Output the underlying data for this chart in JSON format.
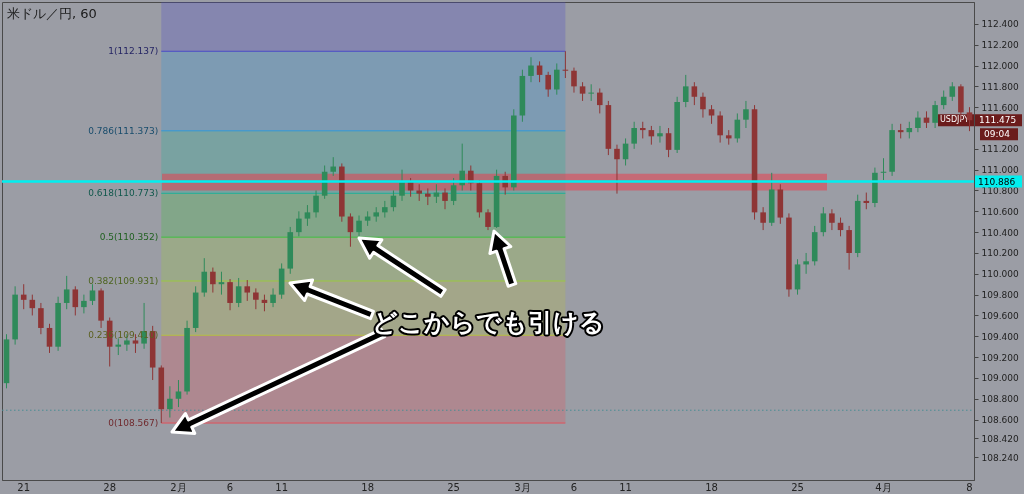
{
  "chart_data": {
    "type": "candlestick",
    "title": "米ドル／円, 60",
    "categories": [
      null,
      null,
      "21",
      null,
      null,
      null,
      null,
      null,
      null,
      null,
      null,
      null,
      "28",
      null,
      null,
      null,
      null,
      null,
      null,
      null,
      "2月",
      null,
      null,
      null,
      null,
      null,
      "6",
      null,
      null,
      null,
      null,
      null,
      "11",
      null,
      null,
      null,
      null,
      null,
      null,
      null,
      null,
      null,
      "18",
      null,
      null,
      null,
      null,
      null,
      null,
      null,
      null,
      null,
      "25",
      null,
      null,
      null,
      null,
      null,
      null,
      null,
      "3月",
      null,
      null,
      null,
      null,
      null,
      "6",
      null,
      null,
      null,
      null,
      null,
      "11",
      null,
      null,
      null,
      null,
      null,
      null,
      null,
      null,
      null,
      "18",
      null,
      null,
      null,
      null,
      null,
      null,
      null,
      null,
      null,
      "25",
      null,
      null,
      null,
      null,
      null,
      null,
      null,
      null,
      null,
      "4月",
      null,
      null,
      null,
      null,
      null,
      null,
      null,
      null,
      null,
      "8"
    ],
    "ohlc": [
      [
        108.95,
        109.42,
        108.9,
        109.37
      ],
      [
        109.37,
        109.88,
        109.32,
        109.8
      ],
      [
        109.8,
        109.9,
        109.66,
        109.75
      ],
      [
        109.75,
        109.8,
        109.6,
        109.67
      ],
      [
        109.67,
        109.72,
        109.42,
        109.48
      ],
      [
        109.48,
        109.52,
        109.24,
        109.3
      ],
      [
        109.3,
        109.78,
        109.26,
        109.72
      ],
      [
        109.72,
        109.98,
        109.66,
        109.85
      ],
      [
        109.85,
        109.88,
        109.6,
        109.68
      ],
      [
        109.68,
        109.8,
        109.62,
        109.74
      ],
      [
        109.74,
        109.9,
        109.7,
        109.84
      ],
      [
        109.84,
        109.86,
        109.48,
        109.55
      ],
      [
        109.55,
        109.58,
        109.11,
        109.3
      ],
      [
        109.3,
        109.38,
        109.22,
        109.32
      ],
      [
        109.32,
        109.42,
        109.26,
        109.36
      ],
      [
        109.36,
        109.42,
        109.24,
        109.33
      ],
      [
        109.33,
        109.72,
        109.28,
        109.45
      ],
      [
        109.45,
        109.5,
        108.98,
        109.1
      ],
      [
        109.1,
        109.12,
        108.567,
        108.7
      ],
      [
        108.7,
        108.92,
        108.62,
        108.8
      ],
      [
        108.8,
        108.98,
        108.72,
        108.87
      ],
      [
        108.87,
        109.55,
        108.84,
        109.48
      ],
      [
        109.48,
        109.88,
        109.44,
        109.82
      ],
      [
        109.82,
        110.15,
        109.78,
        110.02
      ],
      [
        110.02,
        110.06,
        109.82,
        109.9
      ],
      [
        109.9,
        110.02,
        109.8,
        109.92
      ],
      [
        109.92,
        109.95,
        109.65,
        109.72
      ],
      [
        109.72,
        109.96,
        109.68,
        109.88
      ],
      [
        109.88,
        109.94,
        109.74,
        109.82
      ],
      [
        109.82,
        109.86,
        109.66,
        109.75
      ],
      [
        109.75,
        109.8,
        109.64,
        109.72
      ],
      [
        109.72,
        109.86,
        109.68,
        109.8
      ],
      [
        109.8,
        110.1,
        109.76,
        110.05
      ],
      [
        110.05,
        110.45,
        110.0,
        110.4
      ],
      [
        110.4,
        110.6,
        110.36,
        110.53
      ],
      [
        110.53,
        110.66,
        110.46,
        110.59
      ],
      [
        110.59,
        110.8,
        110.54,
        110.75
      ],
      [
        110.75,
        111.04,
        110.72,
        110.98
      ],
      [
        110.98,
        111.12,
        110.94,
        111.03
      ],
      [
        111.03,
        111.06,
        110.5,
        110.55
      ],
      [
        110.55,
        110.58,
        110.26,
        110.4
      ],
      [
        110.4,
        110.56,
        110.36,
        110.51
      ],
      [
        110.51,
        110.6,
        110.46,
        110.55
      ],
      [
        110.55,
        110.64,
        110.5,
        110.59
      ],
      [
        110.59,
        110.7,
        110.54,
        110.64
      ],
      [
        110.64,
        110.8,
        110.6,
        110.75
      ],
      [
        110.75,
        111.0,
        110.7,
        110.88
      ],
      [
        110.88,
        110.92,
        110.74,
        110.8
      ],
      [
        110.8,
        110.86,
        110.7,
        110.77
      ],
      [
        110.77,
        110.82,
        110.66,
        110.74
      ],
      [
        110.74,
        110.86,
        110.68,
        110.78
      ],
      [
        110.78,
        110.82,
        110.62,
        110.7
      ],
      [
        110.7,
        110.92,
        110.66,
        110.85
      ],
      [
        110.85,
        111.25,
        110.8,
        110.99
      ],
      [
        110.99,
        111.04,
        110.8,
        110.87
      ],
      [
        110.87,
        110.9,
        110.54,
        110.59
      ],
      [
        110.59,
        110.62,
        110.42,
        110.45
      ],
      [
        110.45,
        111.0,
        110.44,
        110.94
      ],
      [
        110.94,
        110.98,
        110.76,
        110.83
      ],
      [
        110.83,
        111.58,
        110.8,
        111.52
      ],
      [
        111.52,
        111.96,
        111.46,
        111.9
      ],
      [
        111.9,
        112.08,
        111.84,
        112.0
      ],
      [
        112.0,
        112.04,
        111.84,
        111.91
      ],
      [
        111.91,
        111.94,
        111.7,
        111.77
      ],
      [
        111.77,
        112.02,
        111.72,
        111.96
      ],
      [
        111.96,
        112.137,
        111.88,
        111.95
      ],
      [
        111.95,
        111.98,
        111.74,
        111.8
      ],
      [
        111.8,
        111.84,
        111.66,
        111.73
      ],
      [
        111.73,
        111.82,
        111.66,
        111.74
      ],
      [
        111.74,
        111.78,
        111.54,
        111.62
      ],
      [
        111.62,
        111.66,
        111.14,
        111.2
      ],
      [
        111.2,
        111.24,
        110.77,
        111.1
      ],
      [
        111.1,
        111.3,
        111.04,
        111.25
      ],
      [
        111.25,
        111.46,
        111.2,
        111.4
      ],
      [
        111.4,
        111.46,
        111.3,
        111.38
      ],
      [
        111.38,
        111.42,
        111.24,
        111.32
      ],
      [
        111.32,
        111.42,
        111.26,
        111.35
      ],
      [
        111.35,
        111.4,
        111.12,
        111.19
      ],
      [
        111.19,
        111.7,
        111.16,
        111.65
      ],
      [
        111.65,
        111.91,
        111.6,
        111.8
      ],
      [
        111.8,
        111.84,
        111.62,
        111.7
      ],
      [
        111.7,
        111.74,
        111.5,
        111.58
      ],
      [
        111.58,
        111.62,
        111.44,
        111.52
      ],
      [
        111.52,
        111.56,
        111.26,
        111.33
      ],
      [
        111.33,
        111.38,
        111.24,
        111.3
      ],
      [
        111.3,
        111.54,
        111.26,
        111.48
      ],
      [
        111.48,
        111.66,
        111.4,
        111.58
      ],
      [
        111.58,
        111.62,
        110.52,
        110.59
      ],
      [
        110.59,
        110.64,
        110.42,
        110.49
      ],
      [
        110.49,
        110.97,
        110.46,
        110.81
      ],
      [
        110.81,
        110.86,
        110.48,
        110.54
      ],
      [
        110.54,
        110.58,
        109.78,
        109.85
      ],
      [
        109.85,
        110.14,
        109.8,
        110.09
      ],
      [
        110.09,
        110.2,
        110.0,
        110.12
      ],
      [
        110.12,
        110.46,
        110.08,
        110.4
      ],
      [
        110.4,
        110.64,
        110.36,
        110.58
      ],
      [
        110.58,
        110.62,
        110.42,
        110.49
      ],
      [
        110.49,
        110.54,
        110.36,
        110.42
      ],
      [
        110.42,
        110.46,
        110.04,
        110.2
      ],
      [
        110.2,
        110.76,
        110.16,
        110.7
      ],
      [
        110.7,
        110.78,
        110.62,
        110.68
      ],
      [
        110.68,
        111.02,
        110.64,
        110.97
      ],
      [
        110.97,
        111.11,
        110.9,
        110.98
      ],
      [
        110.98,
        111.44,
        110.94,
        111.38
      ],
      [
        111.38,
        111.44,
        111.3,
        111.36
      ],
      [
        111.36,
        111.46,
        111.3,
        111.4
      ],
      [
        111.4,
        111.56,
        111.36,
        111.5
      ],
      [
        111.5,
        111.56,
        111.4,
        111.45
      ],
      [
        111.45,
        111.66,
        111.4,
        111.62
      ],
      [
        111.62,
        111.76,
        111.58,
        111.7
      ],
      [
        111.7,
        111.84,
        111.66,
        111.8
      ],
      [
        111.8,
        111.82,
        111.48,
        111.55
      ],
      [
        111.55,
        111.6,
        111.37,
        111.475
      ]
    ],
    "ylim": [
      108.02,
      112.61
    ],
    "yticks": [
      {
        "value": 112.4,
        "label": "112.400"
      },
      {
        "value": 112.2,
        "label": "112.200"
      },
      {
        "value": 112,
        "label": "112.000"
      },
      {
        "value": 111.8,
        "label": "111.800"
      },
      {
        "value": 111.6,
        "label": "111.600"
      },
      {
        "value": 111.2,
        "label": "111.200"
      },
      {
        "value": 111,
        "label": "111.000"
      },
      {
        "value": 110.8,
        "label": "110.800"
      },
      {
        "value": 110.6,
        "label": "110.600"
      },
      {
        "value": 110.4,
        "label": "110.400"
      },
      {
        "value": 110.2,
        "label": "110.200"
      },
      {
        "value": 110,
        "label": "110.000"
      },
      {
        "value": 109.8,
        "label": "109.800"
      },
      {
        "value": 109.6,
        "label": "109.600"
      },
      {
        "value": 109.4,
        "label": "109.400"
      },
      {
        "value": 109.2,
        "label": "109.200"
      },
      {
        "value": 109,
        "label": "109.000"
      },
      {
        "value": 108.8,
        "label": "108.800"
      },
      {
        "value": 108.6,
        "label": "108.600"
      },
      {
        "value": 108.42,
        "label": "108.420"
      },
      {
        "value": 108.24,
        "label": "108.240"
      }
    ],
    "bands": [
      {
        "axis": "y",
        "from": 108.567,
        "to": 109.41,
        "label": "0(108.567)",
        "color": "#e0525a"
      },
      {
        "axis": "y",
        "from": 109.41,
        "to": 109.931,
        "label": "0.236(109.410)",
        "color": "#b8c040"
      },
      {
        "axis": "y",
        "from": 109.931,
        "to": 110.352,
        "label": "0.382(109.931)",
        "color": "#9ac840"
      },
      {
        "axis": "y",
        "from": 110.352,
        "to": 110.773,
        "label": "0.5(110.352)",
        "color": "#40c040"
      },
      {
        "axis": "y",
        "from": 110.773,
        "to": 111.373,
        "label": "0.618(110.773)",
        "color": "#20b098"
      },
      {
        "axis": "y",
        "from": 111.373,
        "to": 112.137,
        "label": "0.786(111.373)",
        "color": "#3098d8"
      },
      {
        "axis": "y",
        "from": 112.137,
        "to": 112.61,
        "label": "1(112.137)",
        "color": "#4a4ac8"
      },
      {
        "axis": "y",
        "from": 110.8,
        "to": 110.96,
        "color": "#e84050"
      }
    ],
    "ref_lines": [
      {
        "axis": "y",
        "value": 110.886,
        "label": "110.886",
        "color": "#00f0f0",
        "line_style": "solid"
      },
      {
        "axis": "y",
        "value": 108.69,
        "color": "#4a8c94",
        "line_style": "dotted"
      }
    ],
    "annotations": [
      "どこからでも引ける",
      {
        "text": "USDJPY",
        "y": 111.475
      },
      "111.475",
      "09:04"
    ]
  }
}
